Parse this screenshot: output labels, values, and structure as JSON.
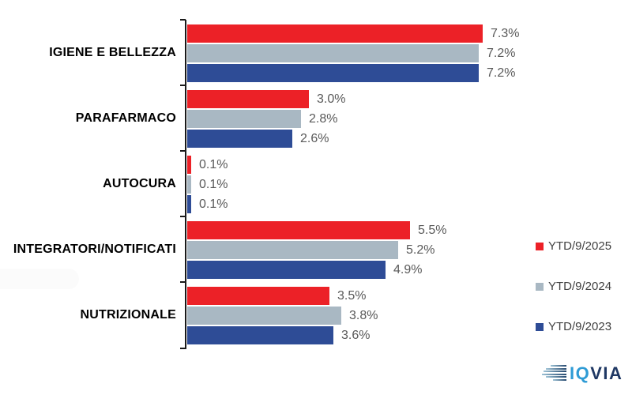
{
  "chart_data": {
    "type": "bar",
    "orientation": "horizontal",
    "title": "",
    "categories": [
      "IGIENE E BELLEZZA",
      "PARAFARMACO",
      "AUTOCURA",
      "INTEGRATORI/NOTIFICATI",
      "NUTRIZIONALE"
    ],
    "series": [
      {
        "name": "YTD/9/2025",
        "color": "#EC2127",
        "values": [
          7.3,
          3.0,
          0.1,
          5.5,
          3.5
        ]
      },
      {
        "name": "YTD/9/2024",
        "color": "#A9B8C3",
        "values": [
          7.2,
          2.8,
          0.1,
          5.2,
          3.8
        ]
      },
      {
        "name": "YTD/9/2023",
        "color": "#2E4C96",
        "values": [
          7.2,
          2.6,
          0.1,
          4.9,
          3.6
        ]
      }
    ],
    "value_suffix": "%",
    "value_decimals": 1,
    "xlim": [
      0,
      8.1
    ],
    "grid": false,
    "legend_position": "right",
    "axis_color": "#1a1a1a",
    "value_label_color": "#595959",
    "category_label_color": "#000000",
    "legend_text_color": "#404040"
  },
  "logo": {
    "brand": "IQVIA",
    "part_iq": "IQ",
    "part_via": "VIA",
    "color_iq": "#2E9BD5",
    "color_via": "#1F3864",
    "stripe_color_light": "#9EC3D6",
    "stripe_color_dark": "#27496F"
  }
}
